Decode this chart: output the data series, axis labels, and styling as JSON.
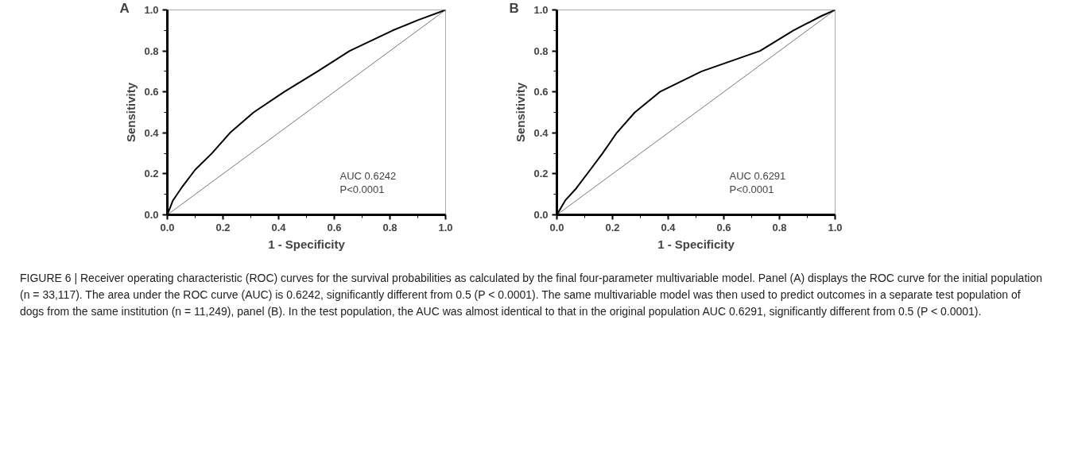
{
  "chart_data": [
    {
      "type": "line",
      "title": "A",
      "xlabel": "1 - Specificity",
      "ylabel": "Sensitivity",
      "series": [
        {
          "color": "#000000",
          "x": [
            0,
            0.02,
            0.05,
            0.1,
            0.16,
            0.225,
            0.31,
            0.42,
            0.54,
            0.655,
            0.81,
            0.9,
            1
          ],
          "values": [
            0,
            0.07,
            0.13,
            0.22,
            0.3,
            0.4,
            0.5,
            0.6,
            0.7,
            0.8,
            0.9,
            0.95,
            1
          ]
        },
        {
          "color": "#555555",
          "x": [
            0,
            1
          ],
          "values": [
            0,
            1
          ]
        }
      ],
      "xlim": [
        0,
        1
      ],
      "ylim": [
        0,
        1
      ],
      "xticks": [
        {
          "value": 0,
          "label": "0.0"
        },
        {
          "value": 0.1,
          "label": null
        },
        {
          "value": 0.2,
          "label": "0.2"
        },
        {
          "value": 0.3,
          "label": null
        },
        {
          "value": 0.4,
          "label": "0.4"
        },
        {
          "value": 0.5,
          "label": null
        },
        {
          "value": 0.6,
          "label": "0.6"
        },
        {
          "value": 0.7,
          "label": null
        },
        {
          "value": 0.8,
          "label": "0.8"
        },
        {
          "value": 0.9,
          "label": null
        },
        {
          "value": 1,
          "label": "1.0"
        }
      ],
      "yticks": [
        {
          "value": 0,
          "label": "0.0"
        },
        {
          "value": 0.1,
          "label": null
        },
        {
          "value": 0.2,
          "label": "0.2"
        },
        {
          "value": 0.3,
          "label": null
        },
        {
          "value": 0.4,
          "label": "0.4"
        },
        {
          "value": 0.5,
          "label": null
        },
        {
          "value": 0.6,
          "label": "0.6"
        },
        {
          "value": 0.7,
          "label": null
        },
        {
          "value": 0.8,
          "label": "0.8"
        },
        {
          "value": 0.9,
          "label": null
        },
        {
          "value": 1,
          "label": "1.0"
        }
      ],
      "grid": false,
      "marker": "none",
      "line_style": "solid",
      "annotations": [
        "AUC 0.6242",
        "P<0.0001"
      ]
    },
    {
      "type": "line",
      "title": "B",
      "xlabel": "1 - Specificity",
      "ylabel": "Sensitivity",
      "series": [
        {
          "color": "#000000",
          "x": [
            0,
            0.03,
            0.07,
            0.12,
            0.164,
            0.215,
            0.28,
            0.37,
            0.52,
            0.73,
            0.85,
            0.95,
            1
          ],
          "values": [
            0,
            0.07,
            0.13,
            0.22,
            0.3,
            0.4,
            0.5,
            0.6,
            0.7,
            0.8,
            0.9,
            0.97,
            1
          ]
        },
        {
          "color": "#555555",
          "x": [
            0,
            1
          ],
          "values": [
            0,
            1
          ]
        }
      ],
      "xlim": [
        0,
        1
      ],
      "ylim": [
        0,
        1
      ],
      "xticks": [
        {
          "value": 0,
          "label": "0.0"
        },
        {
          "value": 0.1,
          "label": null
        },
        {
          "value": 0.2,
          "label": "0.2"
        },
        {
          "value": 0.3,
          "label": null
        },
        {
          "value": 0.4,
          "label": "0.4"
        },
        {
          "value": 0.5,
          "label": null
        },
        {
          "value": 0.6,
          "label": "0.6"
        },
        {
          "value": 0.7,
          "label": null
        },
        {
          "value": 0.8,
          "label": "0.8"
        },
        {
          "value": 0.9,
          "label": null
        },
        {
          "value": 1,
          "label": "1.0"
        }
      ],
      "yticks": [
        {
          "value": 0,
          "label": "0.0"
        },
        {
          "value": 0.1,
          "label": null
        },
        {
          "value": 0.2,
          "label": "0.2"
        },
        {
          "value": 0.3,
          "label": null
        },
        {
          "value": 0.4,
          "label": "0.4"
        },
        {
          "value": 0.5,
          "label": null
        },
        {
          "value": 0.6,
          "label": "0.6"
        },
        {
          "value": 0.7,
          "label": null
        },
        {
          "value": 0.8,
          "label": "0.8"
        },
        {
          "value": 0.9,
          "label": null
        },
        {
          "value": 1,
          "label": "1.0"
        }
      ],
      "grid": false,
      "marker": "none",
      "line_style": "solid",
      "annotations": [
        "AUC 0.6291",
        "P<0.0001",
        "FIGURE 6 | Receiver operating characteristic (ROC) curves for the survival probabilities as calculated by the final four-parameter multivariable model. Panel (A) displays the ROC curve for the initial population (n = 33,117). The area under the ROC curve (AUC) is 0.6242, significantly different from 0.5 (P < 0.0001). The same multivariable model was then used to predict outcomes in a separate test population of dogs from the same institution (n = 11,249), panel (B). In the test population, the AUC was almost identical to that in the original population AUC 0.6291, significantly different from 0.5 (P < 0.0001)."
      ]
    }
  ]
}
